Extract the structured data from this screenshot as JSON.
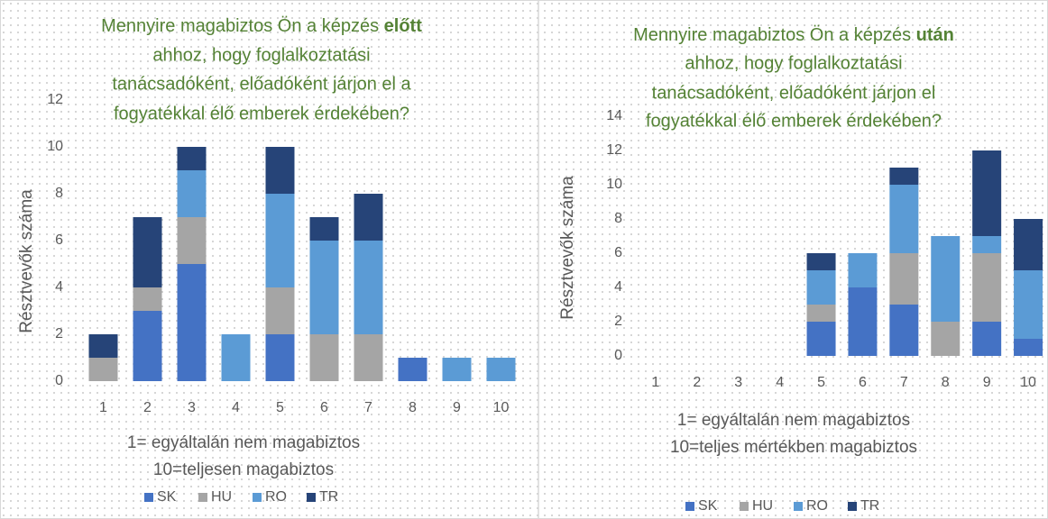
{
  "chart_data": [
    {
      "type": "bar",
      "stacked": true,
      "title": [
        [
          {
            "text": "Mennyire magabiztos Ön a képzés ",
            "bold": false
          },
          {
            "text": "előtt",
            "bold": true
          }
        ],
        "ahhoz, hogy foglalkoztatási",
        "tanácsadóként, előadóként járjon el a",
        "fogyatékkal élő emberek érdekében?"
      ],
      "ylabel": "Résztvevők száma",
      "xlabel": [
        "1= egyáltalán nem magabiztos",
        "10=teljesen magabiztos"
      ],
      "categories": [
        "1",
        "2",
        "3",
        "4",
        "5",
        "6",
        "7",
        "8",
        "9",
        "10"
      ],
      "series": [
        {
          "name": "SK",
          "color": "#4472c4",
          "values": [
            0,
            3,
            5,
            0,
            2,
            0,
            0,
            1,
            0,
            0
          ]
        },
        {
          "name": "HU",
          "color": "#a5a5a5",
          "values": [
            1,
            1,
            2,
            0,
            2,
            2,
            2,
            0,
            0,
            0
          ]
        },
        {
          "name": "RO",
          "color": "#5b9bd5",
          "values": [
            0,
            0,
            2,
            2,
            4,
            4,
            4,
            0,
            1,
            1
          ]
        },
        {
          "name": "TR",
          "color": "#264478",
          "values": [
            1,
            3,
            1,
            0,
            2,
            1,
            2,
            0,
            0,
            0
          ]
        }
      ],
      "ylim": [
        0,
        12
      ],
      "yticks": [
        0,
        2,
        4,
        6,
        8,
        10,
        12
      ],
      "legend": "bottom"
    },
    {
      "type": "bar",
      "stacked": true,
      "title": [
        [
          {
            "text": "Mennyire magabiztos Ön a képzés ",
            "bold": false
          },
          {
            "text": "után",
            "bold": true
          }
        ],
        "ahhoz, hogy foglalkoztatási",
        "tanácsadóként, előadóként járjon el",
        "fogyatékkal élő emberek érdekében?"
      ],
      "ylabel": "Résztvevők száma",
      "xlabel": [
        "1= egyáltalán nem magabiztos",
        "10=teljes mértékben magabiztos"
      ],
      "categories": [
        "1",
        "2",
        "3",
        "4",
        "5",
        "6",
        "7",
        "8",
        "9",
        "10"
      ],
      "series": [
        {
          "name": "SK",
          "color": "#4472c4",
          "values": [
            0,
            0,
            0,
            0,
            2,
            4,
            3,
            0,
            2,
            1
          ]
        },
        {
          "name": "HU",
          "color": "#a5a5a5",
          "values": [
            0,
            0,
            0,
            0,
            1,
            0,
            3,
            2,
            4,
            0
          ]
        },
        {
          "name": "RO",
          "color": "#5b9bd5",
          "values": [
            0,
            0,
            0,
            0,
            2,
            2,
            4,
            5,
            1,
            4
          ]
        },
        {
          "name": "TR",
          "color": "#264478",
          "values": [
            0,
            0,
            0,
            0,
            1,
            0,
            1,
            0,
            5,
            3
          ]
        }
      ],
      "ylim": [
        0,
        14
      ],
      "yticks": [
        0,
        2,
        4,
        6,
        8,
        10,
        12,
        14
      ],
      "legend": "bottom"
    }
  ]
}
